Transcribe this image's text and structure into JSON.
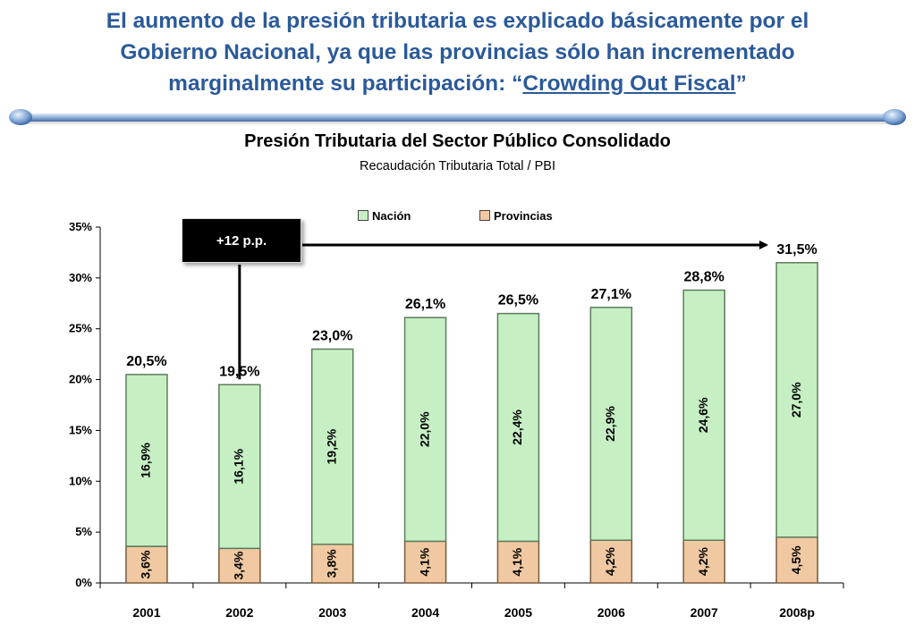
{
  "headline": {
    "line1": "El aumento de la presión tributaria es explicado básicamente por el",
    "line2": "Gobierno Nacional, ya que las provincias sólo han incrementado",
    "line3_pre": "marginalmente su participación: “",
    "line3_quote": "Crowding Out Fiscal",
    "line3_post": "”"
  },
  "callout": {
    "text": "+12 p.p."
  },
  "colors": {
    "nacion_fill": "#c6efc4",
    "provincias_fill": "#f0c9a2",
    "headline": "#2b5a9a"
  },
  "chart_data": {
    "type": "bar",
    "stacked": true,
    "title": "Presión Tributaria del Sector Público Consolidado",
    "subtitle": "Recaudación Tributaria Total / PBI",
    "categories": [
      "2001",
      "2002",
      "2003",
      "2004",
      "2005",
      "2006",
      "2007",
      "2008p"
    ],
    "series": [
      {
        "name": "Provincias",
        "values": [
          3.6,
          3.4,
          3.8,
          4.1,
          4.1,
          4.2,
          4.2,
          4.5
        ],
        "labels": [
          "3,6%",
          "3,4%",
          "3,8%",
          "4,1%",
          "4,1%",
          "4,2%",
          "4,2%",
          "4,5%"
        ]
      },
      {
        "name": "Nación",
        "values": [
          16.9,
          16.1,
          19.2,
          22.0,
          22.4,
          22.9,
          24.6,
          27.0
        ],
        "labels": [
          "16,9%",
          "16,1%",
          "19,2%",
          "22,0%",
          "22,4%",
          "22,9%",
          "24,6%",
          "27,0%"
        ]
      }
    ],
    "totals": [
      20.5,
      19.5,
      23.0,
      26.1,
      26.5,
      27.1,
      28.8,
      31.5
    ],
    "total_labels": [
      "20,5%",
      "19,5%",
      "23,0%",
      "26,1%",
      "26,5%",
      "27,1%",
      "28,8%",
      "31,5%"
    ],
    "ylim": [
      0,
      35
    ],
    "yticks": [
      "0%",
      "5%",
      "10%",
      "15%",
      "20%",
      "25%",
      "30%",
      "35%"
    ],
    "legend": [
      "Nación",
      "Provincias"
    ],
    "legend_position": "top",
    "grid": false
  }
}
